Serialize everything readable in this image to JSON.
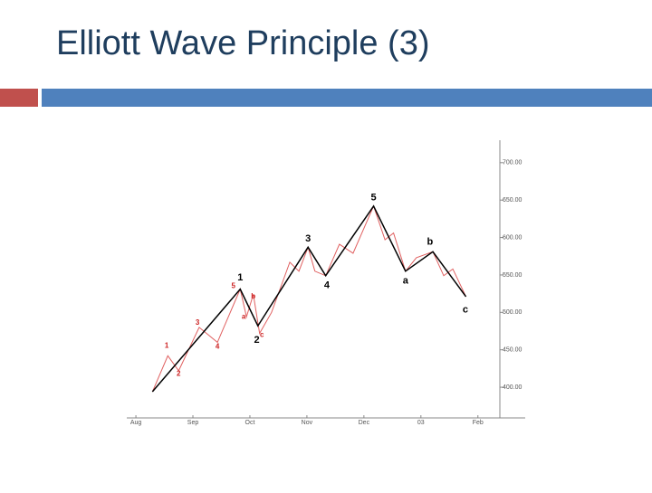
{
  "slide_title": "Elliott Wave Principle (3)",
  "chart_data": {
    "type": "line",
    "xlim": [
      -0.16,
      6.83
    ],
    "xticks": [
      {
        "value": 0,
        "label": "Aug"
      },
      {
        "value": 1,
        "label": "Sep"
      },
      {
        "value": 2,
        "label": "Oct"
      },
      {
        "value": 3,
        "label": "Nov"
      },
      {
        "value": 4,
        "label": "Dec"
      },
      {
        "value": 5,
        "label": "03"
      },
      {
        "value": 6,
        "label": "Feb"
      }
    ],
    "ylim": [
      359,
      730
    ],
    "yticks": [
      {
        "value": 400,
        "label": "400.00"
      },
      {
        "value": 450,
        "label": "450.00"
      },
      {
        "value": 500,
        "label": "500.00"
      },
      {
        "value": 550,
        "label": "550.00"
      },
      {
        "value": 600,
        "label": "600.00"
      },
      {
        "value": 650,
        "label": "650.00"
      },
      {
        "value": 700,
        "label": "700.00"
      }
    ],
    "series": [
      {
        "color": "#e06060",
        "width": 1,
        "x": [
          0.29,
          0.56,
          0.75,
          1.11,
          1.43,
          1.83,
          1.94,
          2.06,
          2.17,
          2.38,
          2.7,
          2.86,
          3.02,
          3.14,
          3.33,
          3.57,
          3.81,
          4.17,
          4.37,
          4.52,
          4.73,
          4.92,
          5.21,
          5.4,
          5.56,
          5.79
        ],
        "values": [
          394,
          442,
          422,
          480,
          460,
          531,
          494,
          524,
          472,
          500,
          567,
          555,
          587,
          555,
          549,
          591,
          579,
          642,
          597,
          606,
          555,
          573,
          581,
          549,
          558,
          521
        ]
      },
      {
        "color": "#000000",
        "width": 1.5,
        "x": [
          0.29,
          1.83,
          2.14,
          3.02,
          3.33,
          4.17,
          4.73,
          5.21,
          5.79
        ],
        "values": [
          394,
          531,
          482,
          587,
          549,
          642,
          555,
          581,
          521
        ]
      }
    ],
    "annotations": [
      {
        "text": "1",
        "x": 1.83,
        "y": 546,
        "color": "#000000",
        "size": 11
      },
      {
        "text": "2",
        "x": 2.12,
        "y": 463,
        "color": "#000000",
        "size": 11
      },
      {
        "text": "3",
        "x": 3.02,
        "y": 598,
        "color": "#000000",
        "size": 11
      },
      {
        "text": "4",
        "x": 3.35,
        "y": 536,
        "color": "#000000",
        "size": 11
      },
      {
        "text": "5",
        "x": 4.17,
        "y": 653,
        "color": "#000000",
        "size": 11
      },
      {
        "text": "a",
        "x": 4.73,
        "y": 542,
        "color": "#000000",
        "size": 11
      },
      {
        "text": "b",
        "x": 5.16,
        "y": 594,
        "color": "#000000",
        "size": 11
      },
      {
        "text": "c",
        "x": 5.78,
        "y": 503,
        "color": "#000000",
        "size": 11
      },
      {
        "text": "1",
        "x": 0.54,
        "y": 455,
        "color": "#cc2222",
        "size": 8
      },
      {
        "text": "2",
        "x": 0.75,
        "y": 418,
        "color": "#cc2222",
        "size": 8
      },
      {
        "text": "3",
        "x": 1.08,
        "y": 486,
        "color": "#cc2222",
        "size": 8
      },
      {
        "text": "4",
        "x": 1.43,
        "y": 454,
        "color": "#cc2222",
        "size": 8
      },
      {
        "text": "5",
        "x": 1.71,
        "y": 535,
        "color": "#cc2222",
        "size": 8
      },
      {
        "text": "a",
        "x": 1.89,
        "y": 494,
        "color": "#cc2222",
        "size": 8
      },
      {
        "text": "b",
        "x": 2.06,
        "y": 521,
        "color": "#cc2222",
        "size": 8
      },
      {
        "text": "c",
        "x": 2.21,
        "y": 470,
        "color": "#cc2222",
        "size": 8
      }
    ]
  }
}
